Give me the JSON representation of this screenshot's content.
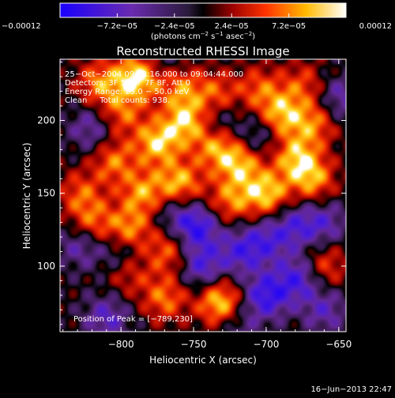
{
  "chart_data": {
    "type": "heatmap",
    "title": "Reconstructed RHESSI Image",
    "xlabel": "Heliocentric X (arcsec)",
    "ylabel": "Heliocentric Y (arcsec)",
    "xlim": [
      -842,
      -645
    ],
    "ylim": [
      55,
      242
    ],
    "x_ticks": [
      -800,
      -750,
      -700,
      -650
    ],
    "x_tick_labels": [
      "−800",
      "−750",
      "−700",
      "−650"
    ],
    "y_ticks": [
      100,
      150,
      200
    ],
    "y_tick_labels": [
      "100",
      "150",
      "200"
    ],
    "colorbar": {
      "min": -0.00012,
      "max": 0.00012,
      "ticks": [
        -0.00012,
        -7.2e-05,
        -2.4e-05,
        2.4e-05,
        7.2e-05,
        0.00012
      ],
      "tick_labels": [
        "−0.00012",
        "−7.2e−05",
        "−2.4e−05",
        "2.4e−05",
        "7.2e−05",
        "0.00012"
      ],
      "units_base": "(photons cm",
      "units_exp1": "−2",
      "units_mid": " s",
      "units_exp2": "−1",
      "units_end": " asec",
      "units_exp3": "−2",
      "units_close": ")"
    },
    "annotations": [
      "25−Oct−2004 09:03:16.000 to 09:04:44.000",
      "Detectors: 3F 5F 6F 7F 8F, Att 0",
      "Energy Range: 25.0 − 50.0 keV",
      "Clean     Total counts: 938."
    ],
    "peak_label": "Position of Peak = [−789,230]",
    "peak": [
      -789,
      230
    ],
    "blobs": [
      {
        "x": -789,
        "y": 230,
        "v": 1.0
      },
      {
        "x": -815,
        "y": 226,
        "v": 0.65
      },
      {
        "x": -760,
        "y": 224,
        "v": 0.6
      },
      {
        "x": -735,
        "y": 218,
        "v": 0.55
      },
      {
        "x": -705,
        "y": 222,
        "v": 0.5
      },
      {
        "x": -675,
        "y": 225,
        "v": 0.45
      },
      {
        "x": -690,
        "y": 204,
        "v": 0.8
      },
      {
        "x": -667,
        "y": 198,
        "v": 0.6
      },
      {
        "x": -755,
        "y": 200,
        "v": 0.85
      },
      {
        "x": -800,
        "y": 205,
        "v": 0.55
      },
      {
        "x": -775,
        "y": 185,
        "v": 0.85
      },
      {
        "x": -735,
        "y": 182,
        "v": 0.7
      },
      {
        "x": -718,
        "y": 170,
        "v": 0.75
      },
      {
        "x": -680,
        "y": 175,
        "v": 0.75
      },
      {
        "x": -805,
        "y": 172,
        "v": 0.6
      },
      {
        "x": -828,
        "y": 150,
        "v": 0.5
      },
      {
        "x": -785,
        "y": 150,
        "v": 0.7
      },
      {
        "x": -760,
        "y": 157,
        "v": 0.8
      },
      {
        "x": -700,
        "y": 150,
        "v": 0.85
      },
      {
        "x": -725,
        "y": 145,
        "v": 0.6
      },
      {
        "x": -668,
        "y": 160,
        "v": 0.7
      },
      {
        "x": -820,
        "y": 130,
        "v": 0.55
      },
      {
        "x": -795,
        "y": 125,
        "v": 0.7
      },
      {
        "x": -768,
        "y": 110,
        "v": 0.55
      },
      {
        "x": -770,
        "y": 78,
        "v": 0.6
      },
      {
        "x": -732,
        "y": 75,
        "v": 0.9
      },
      {
        "x": -795,
        "y": 95,
        "v": 0.4
      },
      {
        "x": -660,
        "y": 100,
        "v": 0.5
      },
      {
        "x": -820,
        "y": 195,
        "v": -0.45
      },
      {
        "x": -828,
        "y": 115,
        "v": -0.45
      },
      {
        "x": -800,
        "y": 110,
        "v": -0.4
      },
      {
        "x": -748,
        "y": 127,
        "v": -0.75
      },
      {
        "x": -745,
        "y": 100,
        "v": -0.6
      },
      {
        "x": -718,
        "y": 110,
        "v": -0.55
      },
      {
        "x": -700,
        "y": 80,
        "v": -0.75
      },
      {
        "x": -700,
        "y": 118,
        "v": -0.5
      },
      {
        "x": -678,
        "y": 92,
        "v": -0.65
      },
      {
        "x": -680,
        "y": 128,
        "v": -0.5
      },
      {
        "x": -660,
        "y": 130,
        "v": -0.45
      },
      {
        "x": -765,
        "y": 138,
        "v": -0.35
      },
      {
        "x": -735,
        "y": 200,
        "v": -0.4
      },
      {
        "x": -705,
        "y": 190,
        "v": -0.4
      },
      {
        "x": -650,
        "y": 215,
        "v": -0.45
      },
      {
        "x": -770,
        "y": 240,
        "v": -0.3
      },
      {
        "x": -810,
        "y": 65,
        "v": -0.5
      },
      {
        "x": -660,
        "y": 70,
        "v": -0.45
      },
      {
        "x": -720,
        "y": 60,
        "v": -0.3
      }
    ]
  },
  "footer_timestamp": "16−Jun−2013 22:47"
}
